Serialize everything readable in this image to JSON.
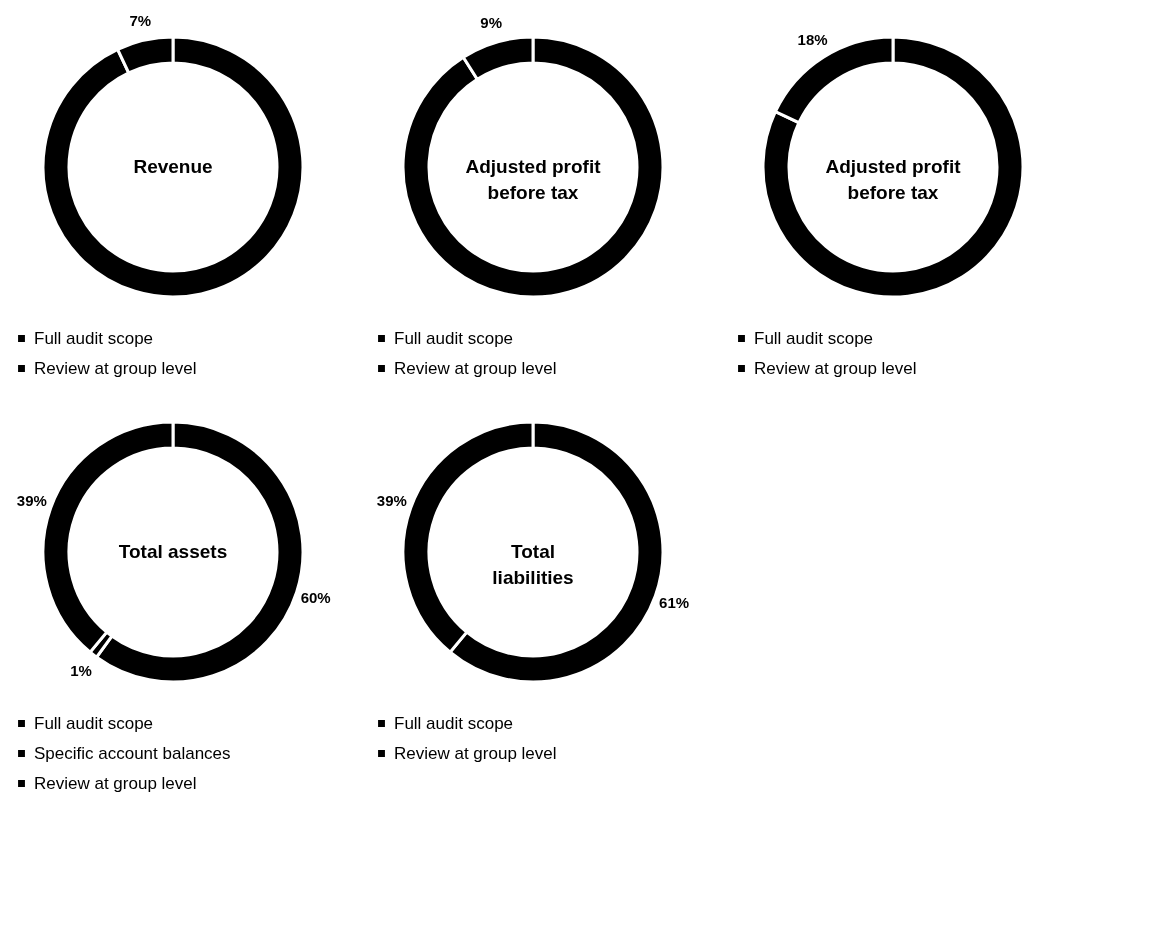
{
  "chart_data": [
    {
      "type": "donut",
      "title": "Revenue",
      "categories": [
        "Full audit scope",
        "Review at group level"
      ],
      "values": [
        93,
        7
      ],
      "colors": [
        "#000000",
        "#000000"
      ],
      "value_labels": [
        null,
        "7%"
      ],
      "legend": "bottom"
    },
    {
      "type": "donut",
      "title": "Adjusted profit before tax",
      "categories": [
        "Full audit scope",
        "Review at group level"
      ],
      "values": [
        91,
        9
      ],
      "colors": [
        "#000000",
        "#000000"
      ],
      "value_labels": [
        null,
        "9%"
      ],
      "legend": "bottom"
    },
    {
      "type": "donut",
      "title": "Adjusted profit before tax",
      "categories": [
        "Full audit scope",
        "Review at group level"
      ],
      "values": [
        82,
        18
      ],
      "colors": [
        "#000000",
        "#000000"
      ],
      "value_labels": [
        null,
        "18%"
      ],
      "legend": "bottom"
    },
    {
      "type": "donut",
      "title": "Total assets",
      "categories": [
        "Full audit scope",
        "Specific account balances",
        "Review at group level"
      ],
      "values": [
        60,
        1,
        39
      ],
      "colors": [
        "#000000",
        "#000000",
        "#000000"
      ],
      "value_labels": [
        "60%",
        "1%",
        "39%"
      ],
      "legend": "bottom"
    },
    {
      "type": "donut",
      "title": "Total liabilities",
      "categories": [
        "Full audit scope",
        "Review at group level"
      ],
      "values": [
        61,
        39
      ],
      "colors": [
        "#000000",
        "#000000"
      ],
      "value_labels": [
        "61%",
        "39%"
      ],
      "legend": "bottom"
    }
  ]
}
